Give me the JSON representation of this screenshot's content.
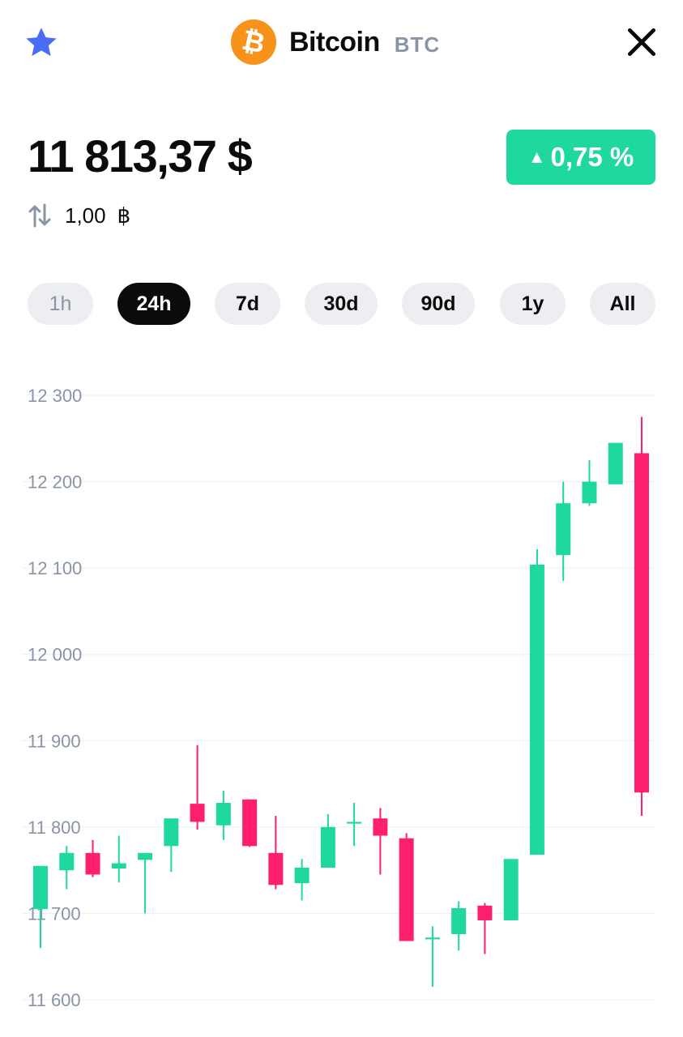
{
  "header": {
    "coin_name": "Bitcoin",
    "coin_ticker": "BTC",
    "coin_logo_glyph": "₿",
    "icons": {
      "favorite": "star-icon",
      "close": "close-icon",
      "convert": "swap-arrows-icon"
    }
  },
  "price": {
    "value": "11 813,37 $",
    "change": "0,75 %",
    "change_arrow": "▲",
    "conversion_amount": "1,00",
    "conversion_unit": "฿"
  },
  "ranges": [
    "1h",
    "24h",
    "7d",
    "30d",
    "90d",
    "1y",
    "All"
  ],
  "selected_range": "24h",
  "colors": {
    "up": "#1fd8a0",
    "down": "#ff1f6e",
    "accent_star": "#4a6cf7",
    "brand_btc": "#f7931a",
    "muted_text": "#8a94a6",
    "tab_bg": "#eceef2"
  },
  "chart_data": {
    "type": "candlestick",
    "yticks": [
      "12 300",
      "12 200",
      "12 100",
      "12 000",
      "11 900",
      "11 800",
      "11 700",
      "11 600"
    ],
    "ytick_values": [
      12300,
      12200,
      12100,
      12000,
      11900,
      11800,
      11700,
      11600
    ],
    "ylim": [
      11590,
      12320
    ],
    "grid": true,
    "candles": [
      {
        "o": 11705,
        "c": 11755,
        "h": 11755,
        "l": 11660
      },
      {
        "o": 11750,
        "c": 11770,
        "h": 11778,
        "l": 11728
      },
      {
        "o": 11770,
        "c": 11745,
        "h": 11785,
        "l": 11742
      },
      {
        "o": 11752,
        "c": 11758,
        "h": 11790,
        "l": 11736
      },
      {
        "o": 11762,
        "c": 11770,
        "h": 11770,
        "l": 11700
      },
      {
        "o": 11778,
        "c": 11810,
        "h": 11810,
        "l": 11748
      },
      {
        "o": 11827,
        "c": 11806,
        "h": 11895,
        "l": 11797
      },
      {
        "o": 11802,
        "c": 11828,
        "h": 11842,
        "l": 11785
      },
      {
        "o": 11832,
        "c": 11778,
        "h": 11832,
        "l": 11777
      },
      {
        "o": 11770,
        "c": 11733,
        "h": 11813,
        "l": 11728
      },
      {
        "o": 11735,
        "c": 11753,
        "h": 11763,
        "l": 11715
      },
      {
        "o": 11753,
        "c": 11800,
        "h": 11815,
        "l": 11753
      },
      {
        "o": 11804,
        "c": 11806,
        "h": 11828,
        "l": 11778
      },
      {
        "o": 11810,
        "c": 11790,
        "h": 11822,
        "l": 11745
      },
      {
        "o": 11787,
        "c": 11668,
        "h": 11793,
        "l": 11668
      },
      {
        "o": 11670,
        "c": 11672,
        "h": 11685,
        "l": 11615
      },
      {
        "o": 11676,
        "c": 11706,
        "h": 11714,
        "l": 11657
      },
      {
        "o": 11709,
        "c": 11692,
        "h": 11712,
        "l": 11653
      },
      {
        "o": 11692,
        "c": 11763,
        "h": 11763,
        "l": 11692
      },
      {
        "o": 11768,
        "c": 12104,
        "h": 12122,
        "l": 11768
      },
      {
        "o": 12115,
        "c": 12175,
        "h": 12200,
        "l": 12085
      },
      {
        "o": 12175,
        "c": 12200,
        "h": 12225,
        "l": 12172
      },
      {
        "o": 12197,
        "c": 12245,
        "h": 12245,
        "l": 12197
      },
      {
        "o": 12233,
        "c": 11840,
        "h": 12275,
        "l": 11813
      }
    ]
  }
}
